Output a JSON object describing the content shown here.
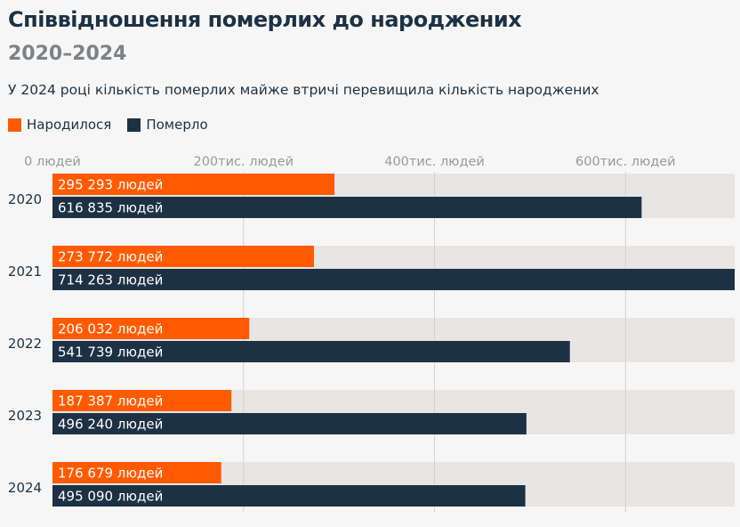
{
  "title": "Співвідношення померлих до народжених",
  "subtitle": "2020–2024",
  "description": "У 2024 році кількість померлих майже втричі перевищила кількість народжених",
  "legend": [
    {
      "label": "Народилося",
      "color": "#ff5a00"
    },
    {
      "label": "Померло",
      "color": "#1c3244"
    }
  ],
  "chart_data": {
    "type": "bar",
    "orientation": "horizontal",
    "categories": [
      "2020",
      "2021",
      "2022",
      "2023",
      "2024"
    ],
    "series": [
      {
        "name": "Народилося",
        "color": "#ff5a00",
        "values": [
          295293,
          273772,
          206032,
          187387,
          176679
        ],
        "labels": [
          "295 293 людей",
          "273 772 людей",
          "206 032 людей",
          "187 387 людей",
          "176 679 людей"
        ]
      },
      {
        "name": "Померло",
        "color": "#1c3244",
        "values": [
          616835,
          714263,
          541739,
          496240,
          495090
        ],
        "labels": [
          "616 835 людей",
          "714 263 людей",
          "541 739 людей",
          "496 240 людей",
          "495 090 людей"
        ]
      }
    ],
    "xlim": [
      0,
      714263
    ],
    "ticks": [
      {
        "value": 0,
        "label": "0 людей"
      },
      {
        "value": 200000,
        "label": "200тис. людей"
      },
      {
        "value": 400000,
        "label": "400тис. людей"
      },
      {
        "value": 600000,
        "label": "600тис. людей"
      }
    ],
    "grid": true,
    "legend_position": "top-left"
  }
}
